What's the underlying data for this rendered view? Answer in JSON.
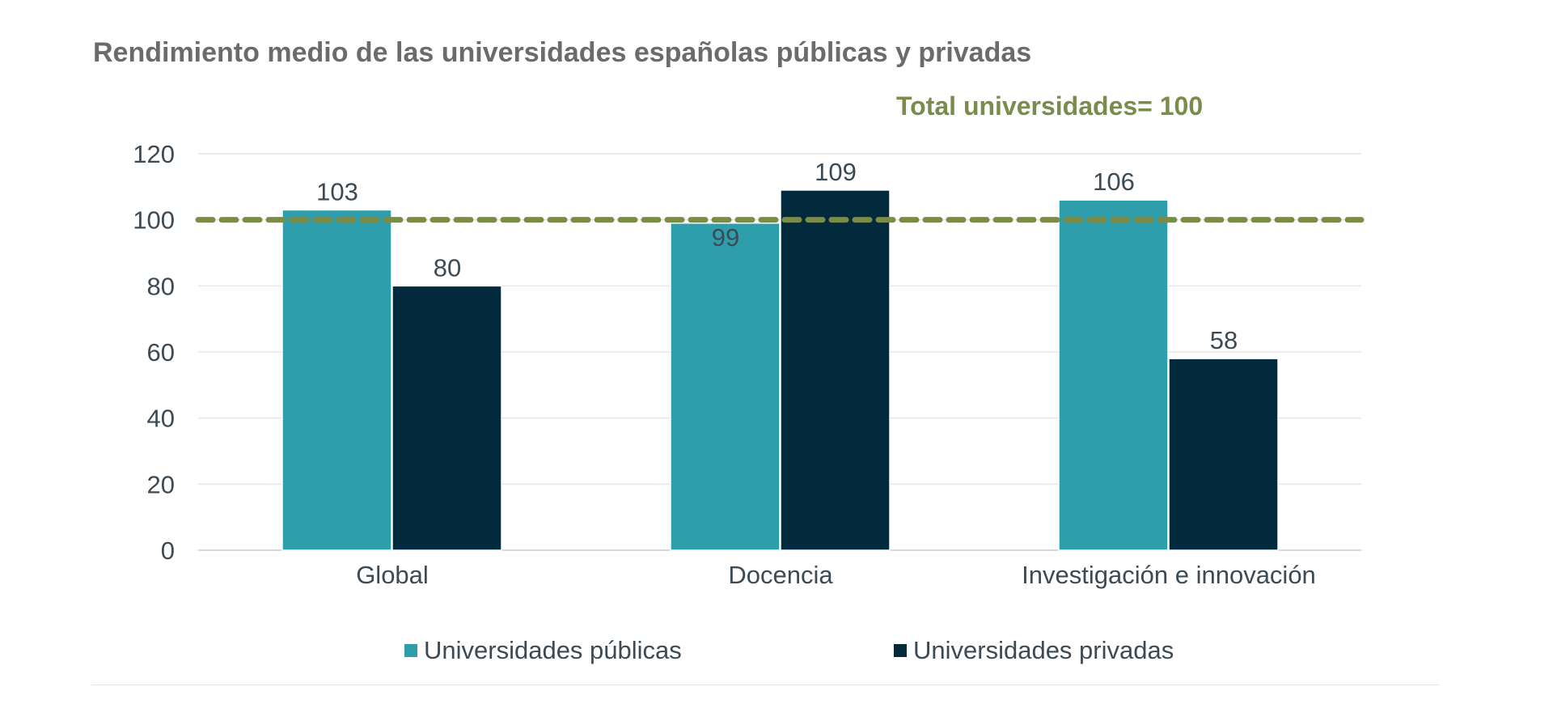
{
  "chart_data": {
    "type": "bar",
    "title": "Rendimiento medio de las universidades españolas públicas y privadas",
    "categories": [
      "Global",
      "Docencia",
      "Investigación e innovación"
    ],
    "series": [
      {
        "name": "Universidades públicas",
        "values": [
          103,
          99,
          106
        ],
        "color": "#2e9eac"
      },
      {
        "name": "Universidades privadas",
        "values": [
          80,
          109,
          58
        ],
        "color": "#03293d"
      }
    ],
    "yticks": [
      0,
      20,
      40,
      60,
      80,
      100,
      120
    ],
    "ylim": [
      0,
      120
    ],
    "grid": true,
    "legend": "bottom",
    "reference_line": {
      "value": 100,
      "label": "Total universidades= 100",
      "color": "#7a8b4a",
      "style": "dashed"
    }
  }
}
